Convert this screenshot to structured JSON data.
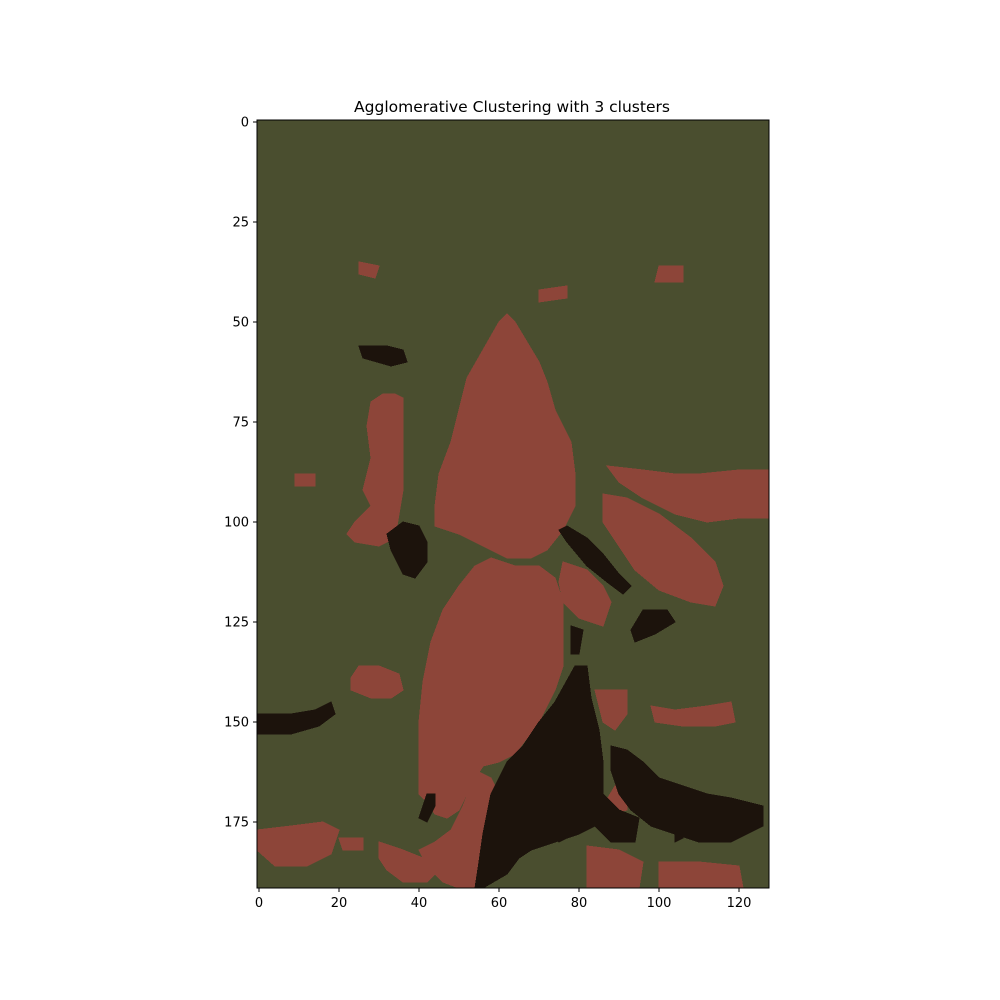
{
  "chart_data": {
    "type": "heatmap",
    "title": "Agglomerative Clustering with 3 clusters",
    "xlabel": "",
    "ylabel": "",
    "xlim": [
      -0.5,
      127.5
    ],
    "ylim": [
      191.5,
      -0.5
    ],
    "grid": false,
    "legend": "none",
    "image_shape": [
      192,
      128
    ],
    "x_ticks": [
      0,
      20,
      40,
      60,
      80,
      100,
      120
    ],
    "y_ticks": [
      0,
      25,
      50,
      75,
      100,
      125,
      150,
      175
    ],
    "clusters": [
      {
        "id": 0,
        "color": "#4a4e2f",
        "role": "background"
      },
      {
        "id": 1,
        "color": "#8d4539",
        "role": "flower regions"
      },
      {
        "id": 2,
        "color": "#1c130c",
        "role": "dark regions"
      }
    ],
    "regions": [
      {
        "cluster": 1,
        "outline": [
          [
            62,
            48
          ],
          [
            64,
            50
          ],
          [
            67,
            55
          ],
          [
            70,
            60
          ],
          [
            72,
            65
          ],
          [
            74,
            72
          ],
          [
            78,
            80
          ],
          [
            79,
            88
          ],
          [
            79,
            96
          ],
          [
            76,
            102
          ],
          [
            72,
            107
          ],
          [
            68,
            109
          ],
          [
            62,
            109
          ],
          [
            56,
            106
          ],
          [
            50,
            103
          ],
          [
            47,
            102
          ],
          [
            44,
            101
          ],
          [
            44,
            96
          ],
          [
            45,
            88
          ],
          [
            48,
            80
          ],
          [
            50,
            72
          ],
          [
            52,
            64
          ],
          [
            56,
            57
          ],
          [
            60,
            50
          ]
        ]
      },
      {
        "cluster": 1,
        "outline": [
          [
            58,
            109
          ],
          [
            64,
            111
          ],
          [
            70,
            111
          ],
          [
            74,
            114
          ],
          [
            76,
            120
          ],
          [
            76,
            128
          ],
          [
            76,
            136
          ],
          [
            74,
            142
          ],
          [
            72,
            146
          ],
          [
            70,
            150
          ],
          [
            67,
            154
          ],
          [
            64,
            158
          ],
          [
            60,
            160
          ],
          [
            56,
            161
          ],
          [
            54,
            164
          ],
          [
            52,
            168
          ],
          [
            50,
            172
          ],
          [
            47,
            174
          ],
          [
            44,
            173
          ],
          [
            42,
            170
          ],
          [
            40,
            168
          ],
          [
            40,
            160
          ],
          [
            40,
            150
          ],
          [
            41,
            140
          ],
          [
            43,
            130
          ],
          [
            46,
            122
          ],
          [
            50,
            116
          ],
          [
            54,
            111
          ]
        ]
      },
      {
        "cluster": 1,
        "outline": [
          [
            54,
            162
          ],
          [
            58,
            164
          ],
          [
            60,
            168
          ],
          [
            59,
            174
          ],
          [
            58,
            180
          ],
          [
            56,
            186
          ],
          [
            54,
            191.5
          ],
          [
            50,
            191.5
          ],
          [
            46,
            190
          ],
          [
            42,
            186
          ],
          [
            40,
            182
          ],
          [
            44,
            180
          ],
          [
            48,
            177
          ],
          [
            51,
            171
          ],
          [
            53,
            166
          ]
        ]
      },
      {
        "cluster": 1,
        "outline": [
          [
            30,
            180
          ],
          [
            36,
            182
          ],
          [
            41,
            184
          ],
          [
            44,
            188
          ],
          [
            42,
            190
          ],
          [
            36,
            190
          ],
          [
            32,
            187
          ],
          [
            30,
            184
          ]
        ]
      },
      {
        "cluster": 1,
        "outline": [
          [
            34,
            68
          ],
          [
            36,
            69
          ],
          [
            36,
            74
          ],
          [
            36,
            85
          ],
          [
            36,
            92
          ],
          [
            35,
            98
          ],
          [
            34,
            104
          ],
          [
            30,
            106
          ],
          [
            24,
            105
          ],
          [
            22,
            103
          ],
          [
            24,
            100
          ],
          [
            28,
            96
          ],
          [
            26,
            92
          ],
          [
            28,
            84
          ],
          [
            27,
            76
          ],
          [
            28,
            70
          ],
          [
            31,
            68
          ]
        ]
      },
      {
        "cluster": 1,
        "outline": [
          [
            76,
            110
          ],
          [
            82,
            112
          ],
          [
            86,
            116
          ],
          [
            88,
            120
          ],
          [
            86,
            126
          ],
          [
            80,
            124
          ],
          [
            76,
            120
          ],
          [
            75,
            115
          ]
        ]
      },
      {
        "cluster": 1,
        "outline": [
          [
            86,
            93
          ],
          [
            92,
            94
          ],
          [
            100,
            98
          ],
          [
            108,
            104
          ],
          [
            114,
            110
          ],
          [
            116,
            116
          ],
          [
            114,
            121
          ],
          [
            108,
            120
          ],
          [
            100,
            117
          ],
          [
            94,
            112
          ],
          [
            90,
            106
          ],
          [
            86,
            100
          ]
        ]
      },
      {
        "cluster": 1,
        "outline": [
          [
            87,
            86
          ],
          [
            96,
            87
          ],
          [
            104,
            88
          ],
          [
            110,
            88
          ],
          [
            120,
            87
          ],
          [
            127.5,
            87
          ],
          [
            127.5,
            99
          ],
          [
            120,
            99
          ],
          [
            112,
            100
          ],
          [
            104,
            98
          ],
          [
            96,
            94
          ],
          [
            90,
            90
          ]
        ]
      },
      {
        "cluster": 1,
        "outline": [
          [
            25,
            136
          ],
          [
            30,
            136
          ],
          [
            35,
            138
          ],
          [
            36,
            142
          ],
          [
            33,
            144
          ],
          [
            28,
            144
          ],
          [
            23,
            142
          ],
          [
            23,
            139
          ]
        ]
      },
      {
        "cluster": 1,
        "outline": [
          [
            98,
            146
          ],
          [
            104,
            147
          ],
          [
            112,
            146
          ],
          [
            118,
            145
          ],
          [
            119,
            150
          ],
          [
            114,
            151
          ],
          [
            106,
            151
          ],
          [
            99,
            150
          ]
        ]
      },
      {
        "cluster": 1,
        "outline": [
          [
            84,
            142
          ],
          [
            88,
            142
          ],
          [
            92,
            142
          ],
          [
            92,
            148
          ],
          [
            89,
            152
          ],
          [
            86,
            150
          ]
        ]
      },
      {
        "cluster": 1,
        "outline": [
          [
            86,
            171
          ],
          [
            89,
            166
          ],
          [
            91,
            161
          ],
          [
            92,
            167
          ],
          [
            92,
            172
          ],
          [
            88,
            173
          ]
        ]
      },
      {
        "cluster": 1,
        "outline": [
          [
            71,
            171
          ],
          [
            75,
            171
          ],
          [
            75,
            176
          ],
          [
            71,
            177
          ]
        ]
      },
      {
        "cluster": 1,
        "outline": [
          [
            82,
            181
          ],
          [
            90,
            182
          ],
          [
            96,
            185
          ],
          [
            95,
            191.5
          ],
          [
            82,
            191.5
          ],
          [
            82,
            186
          ]
        ]
      },
      {
        "cluster": 1,
        "outline": [
          [
            100,
            185
          ],
          [
            110,
            185
          ],
          [
            120,
            186
          ],
          [
            121,
            191.5
          ],
          [
            100,
            191.5
          ]
        ]
      },
      {
        "cluster": 1,
        "outline": [
          [
            -0.5,
            177
          ],
          [
            8,
            176
          ],
          [
            16,
            175
          ],
          [
            20,
            177
          ],
          [
            18,
            183
          ],
          [
            12,
            186
          ],
          [
            4,
            186
          ],
          [
            -0.5,
            182
          ]
        ]
      },
      {
        "cluster": 1,
        "outline": [
          [
            20,
            179
          ],
          [
            26,
            179
          ],
          [
            26,
            182
          ],
          [
            21,
            182
          ]
        ]
      },
      {
        "cluster": 1,
        "outline": [
          [
            70,
            42
          ],
          [
            77,
            41
          ],
          [
            77,
            44
          ],
          [
            70,
            45
          ]
        ]
      },
      {
        "cluster": 1,
        "outline": [
          [
            100,
            36
          ],
          [
            106,
            36
          ],
          [
            106,
            40
          ],
          [
            99,
            40
          ]
        ]
      },
      {
        "cluster": 1,
        "outline": [
          [
            25,
            35
          ],
          [
            30,
            36
          ],
          [
            29,
            39
          ],
          [
            25,
            38
          ]
        ]
      },
      {
        "cluster": 1,
        "outline": [
          [
            9,
            88
          ],
          [
            14,
            88
          ],
          [
            14,
            91
          ],
          [
            9,
            91
          ]
        ]
      },
      {
        "cluster": 2,
        "outline": [
          [
            25,
            56
          ],
          [
            32,
            56
          ],
          [
            36,
            57
          ],
          [
            37,
            60
          ],
          [
            33,
            61
          ],
          [
            26,
            59
          ]
        ]
      },
      {
        "cluster": 2,
        "outline": [
          [
            -0.5,
            148
          ],
          [
            8,
            148
          ],
          [
            14,
            147
          ],
          [
            18,
            145
          ],
          [
            19,
            148
          ],
          [
            15,
            151
          ],
          [
            8,
            153
          ],
          [
            -0.5,
            153
          ]
        ]
      },
      {
        "cluster": 2,
        "outline": [
          [
            36,
            100
          ],
          [
            40,
            101
          ],
          [
            42,
            105
          ],
          [
            42,
            110
          ],
          [
            39,
            114
          ],
          [
            36,
            113
          ],
          [
            33,
            107
          ],
          [
            32,
            103
          ]
        ]
      },
      {
        "cluster": 2,
        "outline": [
          [
            77,
            101
          ],
          [
            82,
            104
          ],
          [
            86,
            108
          ],
          [
            90,
            113
          ],
          [
            93,
            116
          ],
          [
            91,
            118
          ],
          [
            87,
            115
          ],
          [
            82,
            111
          ],
          [
            77,
            105
          ],
          [
            75,
            102
          ]
        ]
      },
      {
        "cluster": 2,
        "outline": [
          [
            96,
            122
          ],
          [
            102,
            122
          ],
          [
            104,
            125
          ],
          [
            99,
            128
          ],
          [
            94,
            130
          ],
          [
            93,
            127
          ]
        ]
      },
      {
        "cluster": 2,
        "outline": [
          [
            78,
            126
          ],
          [
            81,
            127
          ],
          [
            80,
            133
          ],
          [
            78,
            133
          ]
        ]
      },
      {
        "cluster": 2,
        "outline": [
          [
            79,
            136
          ],
          [
            82,
            136
          ],
          [
            83,
            144
          ],
          [
            85,
            152
          ],
          [
            86,
            160
          ],
          [
            86,
            168
          ],
          [
            90,
            172
          ],
          [
            95,
            174
          ],
          [
            94,
            180
          ],
          [
            88,
            180
          ],
          [
            84,
            176
          ],
          [
            80,
            178
          ],
          [
            74,
            180
          ],
          [
            68,
            182
          ],
          [
            65,
            184
          ],
          [
            62,
            188
          ],
          [
            56,
            191.5
          ],
          [
            54,
            191.5
          ],
          [
            55,
            185
          ],
          [
            56,
            178
          ],
          [
            58,
            168
          ],
          [
            62,
            160
          ],
          [
            66,
            156
          ],
          [
            70,
            150
          ],
          [
            74,
            145
          ]
        ]
      },
      {
        "cluster": 2,
        "outline": [
          [
            74,
            168
          ],
          [
            78,
            168
          ],
          [
            80,
            172
          ],
          [
            79,
            178
          ],
          [
            75,
            180
          ],
          [
            72,
            176
          ]
        ]
      },
      {
        "cluster": 2,
        "outline": [
          [
            88,
            156
          ],
          [
            92,
            157
          ],
          [
            96,
            160
          ],
          [
            100,
            164
          ],
          [
            106,
            166
          ],
          [
            112,
            168
          ],
          [
            118,
            169
          ],
          [
            126,
            171
          ],
          [
            126,
            176
          ],
          [
            118,
            180
          ],
          [
            110,
            180
          ],
          [
            104,
            178
          ],
          [
            98,
            176
          ],
          [
            93,
            172
          ],
          [
            90,
            168
          ],
          [
            88,
            162
          ]
        ]
      },
      {
        "cluster": 2,
        "outline": [
          [
            42,
            168
          ],
          [
            44,
            168
          ],
          [
            44,
            171
          ],
          [
            42,
            175
          ],
          [
            40,
            174
          ]
        ]
      },
      {
        "cluster": 2,
        "outline": [
          [
            104,
            176
          ],
          [
            106,
            176
          ],
          [
            106,
            179
          ],
          [
            104,
            180
          ]
        ]
      }
    ]
  }
}
